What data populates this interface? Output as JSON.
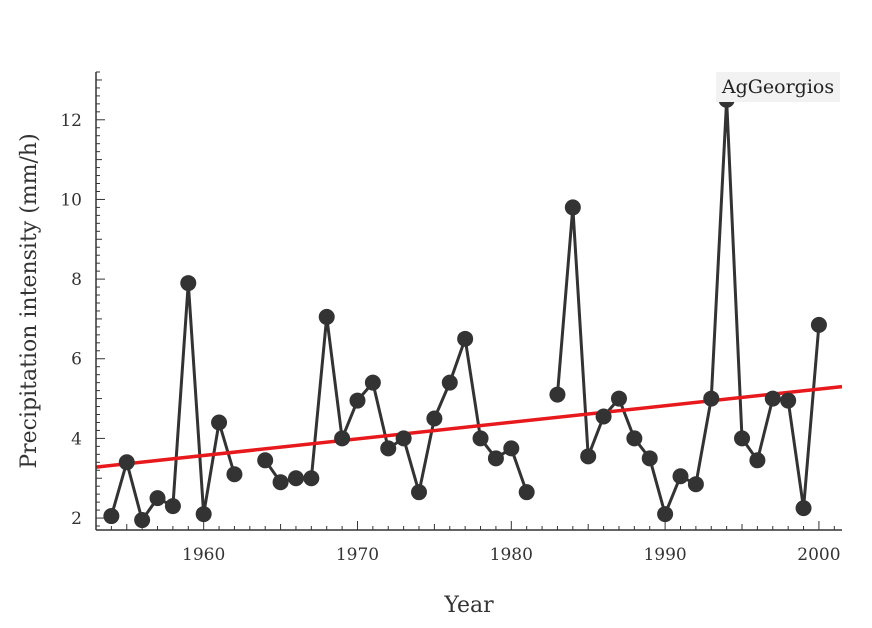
{
  "chart_data": {
    "type": "line",
    "xlabel": "Year",
    "ylabel": "Precipitation intensity (mm/h)",
    "xlim": [
      1953,
      2001.5
    ],
    "ylim": [
      1.7,
      13.2
    ],
    "xticks": [
      1960,
      1970,
      1980,
      1990,
      2000
    ],
    "yticks": [
      2,
      4,
      6,
      8,
      10,
      12
    ],
    "grid": false,
    "legend_label": "AgGeorgios",
    "legend_position": "top-right",
    "series": [
      {
        "color": "#333333",
        "marker": "circle",
        "segments": [
          {
            "x": [
              1954,
              1955,
              1956,
              1957,
              1958,
              1959,
              1960,
              1961,
              1962
            ],
            "y": [
              2.05,
              3.4,
              1.95,
              2.5,
              2.3,
              7.9,
              2.1,
              4.4,
              3.1
            ]
          },
          {
            "x": [
              1964,
              1965,
              1966,
              1967,
              1968,
              1969,
              1970,
              1971,
              1972,
              1973,
              1974,
              1975,
              1976,
              1977,
              1978,
              1979,
              1980,
              1981
            ],
            "y": [
              3.45,
              2.9,
              3.0,
              3.0,
              7.05,
              4.0,
              4.95,
              5.4,
              3.75,
              4.0,
              2.65,
              4.5,
              5.4,
              6.5,
              4.0,
              3.5,
              3.75,
              2.65
            ]
          },
          {
            "x": [
              1983,
              1984,
              1985,
              1986,
              1987,
              1988,
              1989,
              1990,
              1991,
              1992,
              1993,
              1994,
              1995,
              1996,
              1997,
              1998,
              1999,
              2000
            ],
            "y": [
              5.1,
              9.8,
              3.55,
              4.55,
              5.0,
              4.0,
              3.5,
              2.1,
              3.05,
              2.85,
              5.0,
              12.5,
              4.0,
              3.45,
              5.0,
              4.95,
              2.25,
              6.85
            ]
          }
        ]
      }
    ],
    "trend": {
      "color": "#e8191c",
      "x": [
        1953,
        2001.5
      ],
      "y": [
        3.28,
        5.3
      ]
    }
  }
}
